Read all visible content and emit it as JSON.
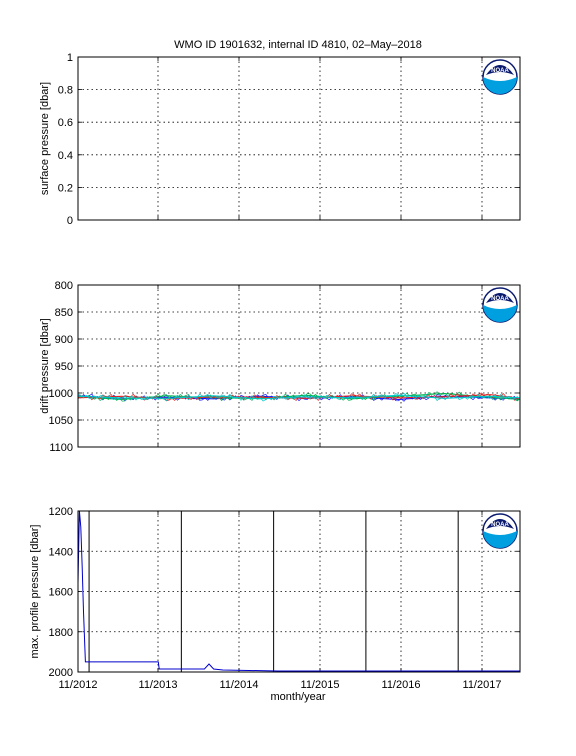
{
  "figure": {
    "title": "WMO ID 1901632, internal ID 4810, 02–May–2018",
    "xlabel": "month/year",
    "x_tick_labels": [
      "11/2012",
      "11/2013",
      "11/2014",
      "11/2015",
      "11/2016",
      "11/2017"
    ],
    "logo_text": "NOAA",
    "colors": {
      "line_blue": "#0000cc",
      "drift_blue": "#1010ff",
      "drift_green": "#00b050",
      "drift_red": "#e02020",
      "drift_cyan": "#00c8c8",
      "logo_navy": "#0a1a6e",
      "logo_cyan": "#00a0e0"
    }
  },
  "chart_data": [
    {
      "type": "line",
      "ylabel": "surface pressure [dbar]",
      "ylim": [
        0,
        1
      ],
      "y_ticks": [
        "0",
        "0.2",
        "0.4",
        "0.6",
        "0.8",
        "1"
      ],
      "grid": true,
      "series": []
    },
    {
      "type": "line",
      "ylabel": "drift pressure [dbar]",
      "ylim": [
        800,
        1100
      ],
      "y_inverted": true,
      "y_ticks": [
        "800",
        "850",
        "900",
        "950",
        "1000",
        "1050",
        "1100"
      ],
      "grid": true,
      "series": [
        {
          "color": "#1010ff",
          "x": [
            2012.83,
            2013.3,
            2013.8,
            2014.3,
            2014.8,
            2015.3,
            2015.8,
            2016.3,
            2016.8,
            2017.3,
            2017.62
          ],
          "y": [
            1005,
            1010,
            1008,
            1011,
            1006,
            1010,
            1007,
            1012,
            1006,
            1009,
            1011
          ]
        },
        {
          "color": "#00b050",
          "x": [
            2012.83,
            2013.3,
            2013.8,
            2014.3,
            2014.8,
            2015.3,
            2015.8,
            2016.3,
            2016.8,
            2017.3,
            2017.62
          ],
          "y": [
            1007,
            1012,
            1005,
            1009,
            1010,
            1004,
            1011,
            1006,
            1001,
            1008,
            1012
          ]
        },
        {
          "color": "#e02020",
          "x": [
            2012.83,
            2013.3,
            2013.8,
            2014.3,
            2014.8,
            2015.3,
            2015.8,
            2016.3,
            2016.8,
            2017.3,
            2017.62
          ],
          "y": [
            1009,
            1006,
            1011,
            1007,
            1008,
            1010,
            1005,
            1009,
            1007,
            1003,
            1010
          ]
        },
        {
          "color": "#00c8c8",
          "x": [
            2012.83,
            2013.3,
            2013.8,
            2014.3,
            2014.8,
            2015.3,
            2015.8,
            2016.3,
            2016.8,
            2017.3,
            2017.62
          ],
          "y": [
            1006,
            1009,
            1010,
            1005,
            1011,
            1007,
            1009,
            1004,
            1010,
            1006,
            1009
          ]
        }
      ]
    },
    {
      "type": "line",
      "ylabel": "max. profile pressure [dbar]",
      "ylim": [
        1200,
        2000
      ],
      "y_inverted": true,
      "y_ticks": [
        "1200",
        "1400",
        "1600",
        "1800",
        "2000"
      ],
      "grid": true,
      "series": [
        {
          "color": "#0000cc",
          "x": [
            2012.83,
            2012.845,
            2012.86,
            2012.875,
            2012.89,
            2012.91,
            2012.93,
            2012.95,
            2013.7,
            2013.71,
            2014.0,
            2014.2,
            2014.25,
            2014.3,
            2014.4,
            2015.0,
            2016.0,
            2017.0,
            2017.62
          ],
          "y": [
            1560,
            1200,
            1280,
            1480,
            1700,
            1950,
            1950,
            1950,
            1950,
            1985,
            1985,
            1985,
            1960,
            1985,
            1990,
            1995,
            1995,
            1995,
            1995
          ]
        }
      ],
      "vertical_markers_x": [
        2012.95,
        2013.95,
        2014.95,
        2015.95,
        2016.95,
        2017.95
      ]
    }
  ]
}
